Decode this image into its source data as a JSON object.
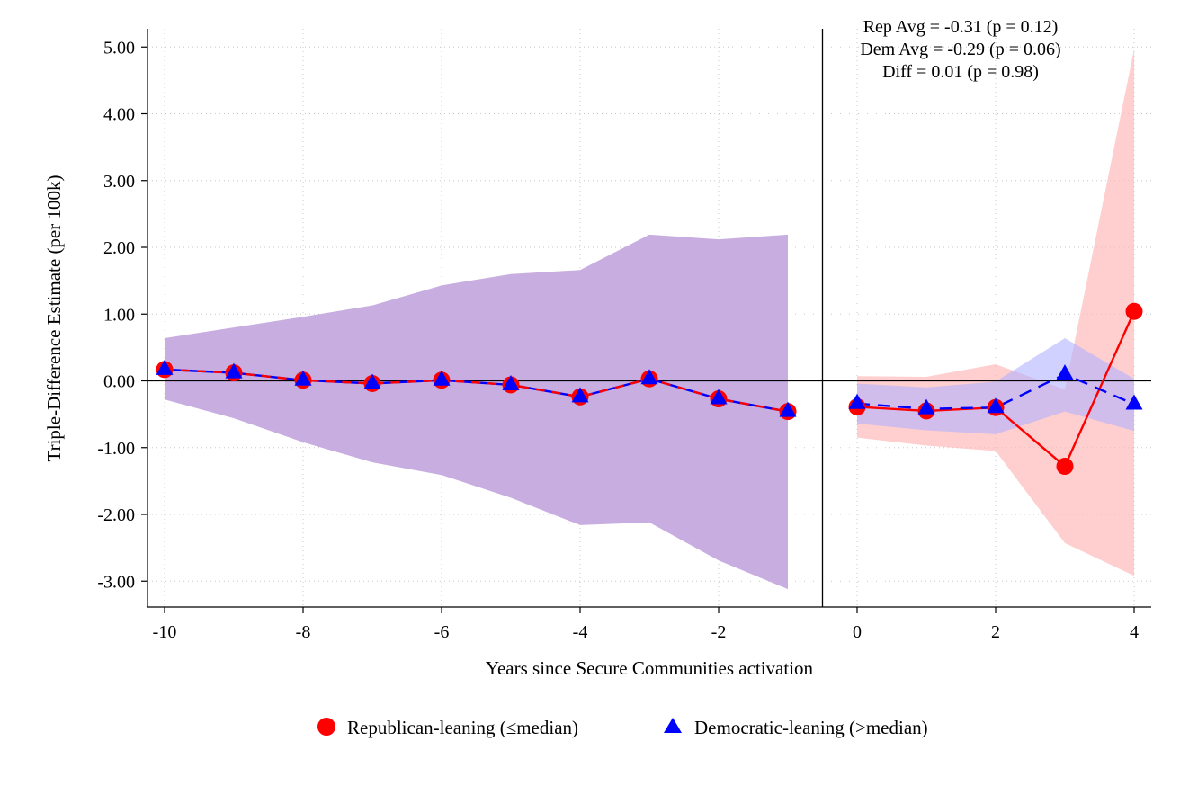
{
  "chart_data": {
    "type": "line",
    "title": "",
    "xlabel": "Years since Secure Communities activation",
    "ylabel": "Triple-Difference Estimate (per 100k)",
    "xlim": [
      -10.25,
      4.25
    ],
    "ylim": [
      -3.35,
      5.3
    ],
    "xticks": [
      -10,
      -8,
      -6,
      -4,
      -2,
      0,
      2,
      4
    ],
    "xtick_labels": [
      "-10",
      "-8",
      "-6",
      "-4",
      "-2",
      "0",
      "2",
      "4"
    ],
    "yticks": [
      5,
      4,
      3,
      2,
      1,
      0,
      -1,
      -2,
      -3
    ],
    "ytick_labels": [
      "5.00",
      "4.00",
      "3.00",
      "2.00",
      "1.00",
      "0.00",
      "-1.00",
      "-2.00",
      "-3.00"
    ],
    "grid": true,
    "reference_lines": {
      "x": -0.5,
      "y": 0
    },
    "legend_position": "bottom",
    "annotations": [
      "Rep Avg = -0.31 (p = 0.12)",
      "Dem Avg = -0.29 (p = 0.06)",
      "Diff = 0.01 (p = 0.98)"
    ],
    "series": [
      {
        "name": "Republican-leaning (≤median)",
        "color": "#ff0000",
        "ci_color": "#ffb3b3",
        "marker": "circle",
        "line_style": "solid",
        "x": [
          -10,
          -9,
          -8,
          -7,
          -6,
          -5,
          -4,
          -3,
          -2,
          -1,
          0,
          1,
          2,
          3,
          4
        ],
        "values": [
          0.17,
          0.12,
          0.01,
          -0.04,
          0.01,
          -0.06,
          -0.24,
          0.03,
          -0.27,
          -0.46,
          -0.39,
          -0.45,
          -0.4,
          -1.28,
          1.04
        ],
        "ci_lower": [
          -0.28,
          -0.56,
          -0.92,
          -1.22,
          -1.41,
          -1.75,
          -2.16,
          -2.12,
          -2.69,
          -3.12,
          -0.85,
          -0.97,
          -1.05,
          -2.43,
          -2.92
        ],
        "ci_upper": [
          0.64,
          0.8,
          0.96,
          1.13,
          1.43,
          1.6,
          1.66,
          2.19,
          2.12,
          2.19,
          0.07,
          0.06,
          0.25,
          -0.13,
          4.97
        ]
      },
      {
        "name": "Democratic-leaning (>median)",
        "color": "#0000ff",
        "ci_color": "#b3b3ff",
        "marker": "triangle",
        "line_style": "dashed",
        "x": [
          -10,
          -9,
          -8,
          -7,
          -6,
          -5,
          -4,
          -3,
          -2,
          -1,
          0,
          1,
          2,
          3,
          4
        ],
        "values": [
          0.17,
          0.12,
          0.01,
          -0.04,
          0.01,
          -0.06,
          -0.24,
          0.03,
          -0.27,
          -0.46,
          -0.34,
          -0.42,
          -0.4,
          0.1,
          -0.35
        ],
        "ci_lower": [
          -0.28,
          -0.56,
          -0.92,
          -1.22,
          -1.41,
          -1.75,
          -2.16,
          -2.12,
          -2.69,
          -3.12,
          -0.64,
          -0.74,
          -0.8,
          -0.46,
          -0.75
        ],
        "ci_upper": [
          0.64,
          0.8,
          0.96,
          1.13,
          1.43,
          1.6,
          1.66,
          2.19,
          2.12,
          2.19,
          -0.04,
          -0.1,
          -0.01,
          0.64,
          0.03
        ]
      }
    ]
  }
}
